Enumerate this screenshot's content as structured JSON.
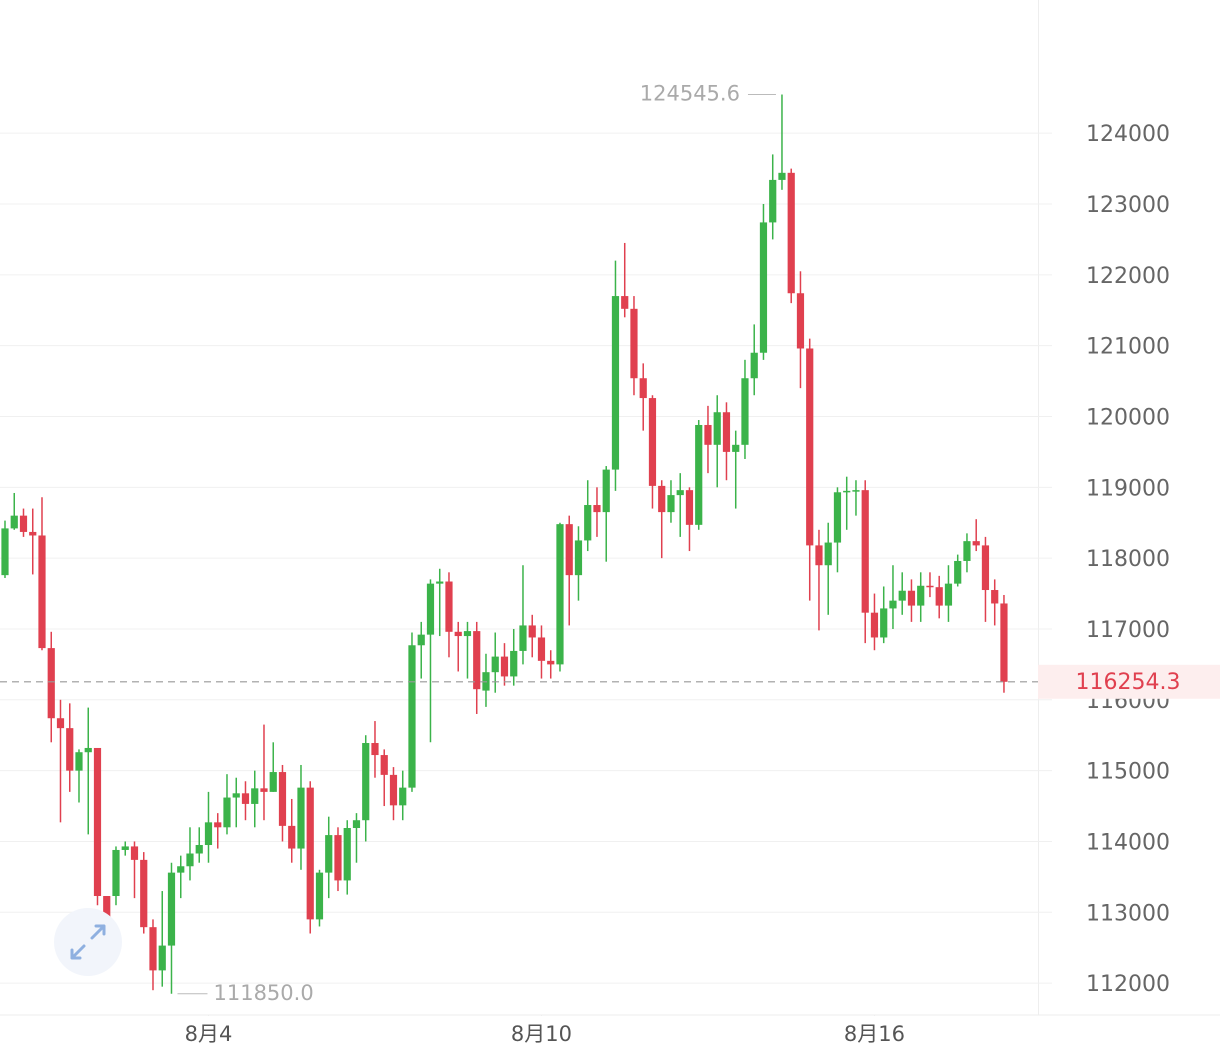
{
  "chart_data": {
    "type": "candlestick",
    "up_color": "#3bb34a",
    "down_color": "#e0404f",
    "open": [
      117760,
      118420,
      118600,
      118370,
      118320,
      116730,
      115740,
      115600,
      115000,
      115260,
      115320,
      113230,
      113230,
      113880,
      113930,
      113740,
      112790,
      112180,
      112530,
      113560,
      113650,
      113830,
      113950,
      114270,
      114200,
      114620,
      114680,
      114530,
      114750,
      114700,
      114980,
      114220,
      113900,
      114760,
      112900,
      113560,
      114090,
      113450,
      114190,
      114300,
      115390,
      115220,
      114940,
      114510,
      114760,
      116770,
      116920,
      117640,
      117670,
      116960,
      116900,
      116970,
      116130,
      116390,
      116610,
      116330,
      116690,
      117050,
      116880,
      116550,
      116500,
      118480,
      117760,
      118250,
      118750,
      118650,
      119250,
      121700,
      121520,
      120540,
      120260,
      119020,
      118650,
      118890,
      118960,
      118470,
      119880,
      119600,
      120060,
      119500,
      119600,
      120540,
      120900,
      122740,
      123340,
      123440,
      121740,
      120960,
      118180,
      117900,
      118220,
      118930,
      118950,
      118960,
      117230,
      116880,
      117290,
      117400,
      117540,
      117330,
      117610,
      117590,
      117330,
      117640,
      117960,
      118240,
      118180,
      117550,
      117360
    ],
    "high": [
      118530,
      118920,
      118700,
      118700,
      118860,
      116960,
      116000,
      115950,
      115300,
      115890,
      115320,
      113200,
      113930,
      114000,
      114000,
      113850,
      112900,
      113300,
      113700,
      113800,
      114200,
      114200,
      114700,
      114400,
      114950,
      114900,
      114850,
      115000,
      115650,
      115400,
      115080,
      114600,
      115080,
      114850,
      113600,
      114350,
      114200,
      114300,
      114400,
      115500,
      115700,
      115300,
      115050,
      115000,
      116950,
      117100,
      117700,
      117850,
      117800,
      117100,
      117100,
      117100,
      116650,
      116950,
      116800,
      117000,
      117900,
      117200,
      117050,
      116700,
      118500,
      118600,
      118450,
      119100,
      119000,
      119300,
      122200,
      122450,
      121700,
      120750,
      120300,
      119100,
      119100,
      119200,
      119000,
      119950,
      120150,
      120300,
      120200,
      119800,
      120800,
      121300,
      123000,
      123700,
      124545.6,
      123500,
      122050,
      121100,
      118400,
      118500,
      119000,
      119150,
      119100,
      119100,
      117500,
      117600,
      117900,
      117800,
      117700,
      117800,
      117800,
      117750,
      117900,
      118050,
      118350,
      118550,
      118300,
      117700,
      117480
    ],
    "low": [
      117720,
      118400,
      118300,
      117770,
      116700,
      115400,
      114270,
      114700,
      114550,
      114100,
      113100,
      112600,
      113100,
      113800,
      113200,
      112700,
      111900,
      111950,
      111850,
      113200,
      113450,
      113700,
      113700,
      113900,
      114100,
      114200,
      114300,
      114200,
      114300,
      114700,
      114000,
      113700,
      113600,
      112700,
      112800,
      113200,
      113300,
      113250,
      113700,
      114000,
      114900,
      114500,
      114300,
      114300,
      114700,
      116300,
      115400,
      116900,
      116600,
      116400,
      116300,
      115800,
      115900,
      116100,
      116200,
      116200,
      116500,
      116600,
      116300,
      116300,
      116400,
      117050,
      117400,
      118100,
      118300,
      117950,
      118950,
      121400,
      120300,
      119800,
      118700,
      118000,
      118500,
      118300,
      118100,
      118400,
      119200,
      119000,
      119100,
      118700,
      119400,
      120300,
      120800,
      122500,
      123200,
      121600,
      120400,
      117400,
      116980,
      117200,
      117800,
      118400,
      118600,
      116800,
      116700,
      116800,
      117000,
      117200,
      117100,
      117100,
      117450,
      117150,
      117100,
      117600,
      117800,
      118100,
      117100,
      117050,
      116100
    ],
    "close": [
      118420,
      118600,
      118370,
      118320,
      116730,
      115740,
      115600,
      115000,
      115260,
      115320,
      113230,
      112700,
      113880,
      113930,
      113740,
      112790,
      112180,
      112530,
      113560,
      113650,
      113830,
      113950,
      114270,
      114200,
      114620,
      114680,
      114530,
      114750,
      114700,
      114980,
      114220,
      113900,
      114760,
      112900,
      113560,
      114090,
      113450,
      114190,
      114300,
      115390,
      115220,
      114940,
      114510,
      114760,
      116770,
      116920,
      117640,
      117670,
      116960,
      116900,
      116970,
      116150,
      116390,
      116610,
      116330,
      116690,
      117050,
      116880,
      116550,
      116500,
      118480,
      117760,
      118250,
      118750,
      118650,
      119250,
      121700,
      121520,
      120540,
      120260,
      119020,
      118650,
      118890,
      118960,
      118470,
      119880,
      119600,
      120060,
      119500,
      119600,
      120540,
      120900,
      122740,
      123340,
      123440,
      121740,
      120960,
      118180,
      117900,
      118220,
      118930,
      118950,
      118960,
      117230,
      116880,
      117290,
      117400,
      117540,
      117330,
      117610,
      117590,
      117330,
      117640,
      117960,
      118240,
      118180,
      117550,
      117360,
      116254.3
    ],
    "xlim": [
      -0.54,
      111.68
    ],
    "xticks": [
      {
        "value": 22,
        "label": "8月4"
      },
      {
        "value": 58,
        "label": "8月10"
      },
      {
        "value": 94,
        "label": "8月16"
      }
    ],
    "ylim": [
      111550,
      125880
    ],
    "yticks": [
      112000,
      113000,
      114000,
      115000,
      116000,
      117000,
      118000,
      119000,
      120000,
      121000,
      122000,
      123000,
      124000
    ],
    "grid": true,
    "max_label": "124545.6",
    "min_label": "111850.0",
    "last_label": "116254.3"
  }
}
